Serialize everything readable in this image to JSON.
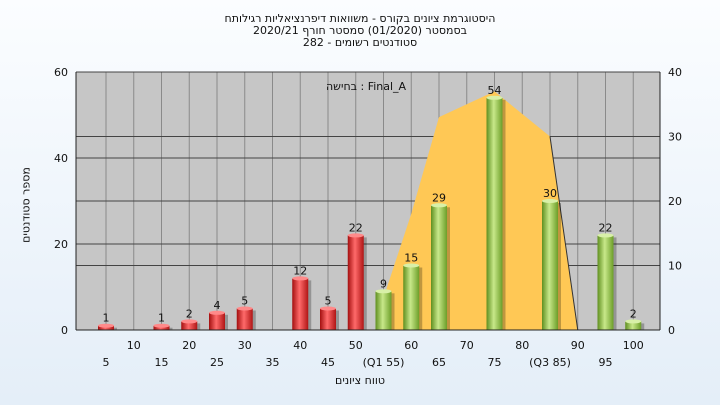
{
  "header": {
    "line1": "היסטוגרמת ציונים בקורס - משוואות דיפרנציאליות רגילותח",
    "line2": "בסמסטר  (01/2020)  סמסטר חורף  2020/21",
    "line3": "סטודנטים רשומים - 282"
  },
  "legend": {
    "text": "בחישה : Final_A"
  },
  "colors": {
    "fail_bar": "#dd2222",
    "pass_bar": "#8cbf3f",
    "area": "#ffc855",
    "plot_bg": "#c6c6c6"
  },
  "chart_data": {
    "type": "bar",
    "title": "היסטוגרמת ציונים בקורס - משוואות דיפרנציאליות רגילותח",
    "xlabel": "טווח ציונים",
    "ylabel": "מספר סטודנטים",
    "ylim": [
      0,
      60
    ],
    "y2lim": [
      0,
      40
    ],
    "y_ticks": [
      0,
      20,
      40,
      60
    ],
    "y2_ticks": [
      0,
      10,
      20,
      30,
      40
    ],
    "grid": true,
    "x_ticks": [
      {
        "value": 5,
        "label": "5"
      },
      {
        "value": 10,
        "label": "10"
      },
      {
        "value": 15,
        "label": "15"
      },
      {
        "value": 20,
        "label": "20"
      },
      {
        "value": 25,
        "label": "25"
      },
      {
        "value": 30,
        "label": "30"
      },
      {
        "value": 35,
        "label": "35"
      },
      {
        "value": 40,
        "label": "40"
      },
      {
        "value": 45,
        "label": "45"
      },
      {
        "value": 50,
        "label": "50"
      },
      {
        "value": 55,
        "label": "(Q1 55)"
      },
      {
        "value": 60,
        "label": "60"
      },
      {
        "value": 65,
        "label": "65"
      },
      {
        "value": 70,
        "label": "70"
      },
      {
        "value": 75,
        "label": "75"
      },
      {
        "value": 80,
        "label": "80"
      },
      {
        "value": 85,
        "label": "(Q3 85)"
      },
      {
        "value": 90,
        "label": "90"
      },
      {
        "value": 95,
        "label": "95"
      },
      {
        "value": 100,
        "label": "100"
      }
    ],
    "bars": [
      {
        "x": 5,
        "value": 1,
        "label": "1",
        "group": "fail"
      },
      {
        "x": 15,
        "value": 1,
        "label": "1",
        "group": "fail"
      },
      {
        "x": 20,
        "value": 2,
        "label": "2",
        "group": "fail"
      },
      {
        "x": 25,
        "value": 4,
        "label": "4",
        "group": "fail"
      },
      {
        "x": 30,
        "value": 5,
        "label": "5",
        "group": "fail"
      },
      {
        "x": 40,
        "value": 12,
        "label": "12",
        "group": "fail"
      },
      {
        "x": 45,
        "value": 5,
        "label": "5",
        "group": "fail"
      },
      {
        "x": 50,
        "value": 22,
        "label": "22",
        "group": "fail"
      },
      {
        "x": 55,
        "value": 9,
        "label": "9",
        "group": "pass"
      },
      {
        "x": 60,
        "value": 15,
        "label": "15",
        "group": "pass"
      },
      {
        "x": 65,
        "value": 29,
        "label": "29",
        "group": "pass"
      },
      {
        "x": 75,
        "value": 54,
        "label": "54",
        "group": "pass"
      },
      {
        "x": 85,
        "value": 30,
        "label": "30",
        "group": "pass"
      },
      {
        "x": 95,
        "value": 22,
        "label": "22",
        "group": "pass"
      },
      {
        "x": 100,
        "value": 2,
        "label": "2",
        "group": "pass"
      }
    ],
    "area": {
      "axis": "right",
      "points": [
        [
          55,
          5
        ],
        [
          60,
          18
        ],
        [
          65,
          33
        ],
        [
          75,
          37
        ],
        [
          85,
          30
        ],
        [
          90,
          0
        ]
      ]
    }
  }
}
